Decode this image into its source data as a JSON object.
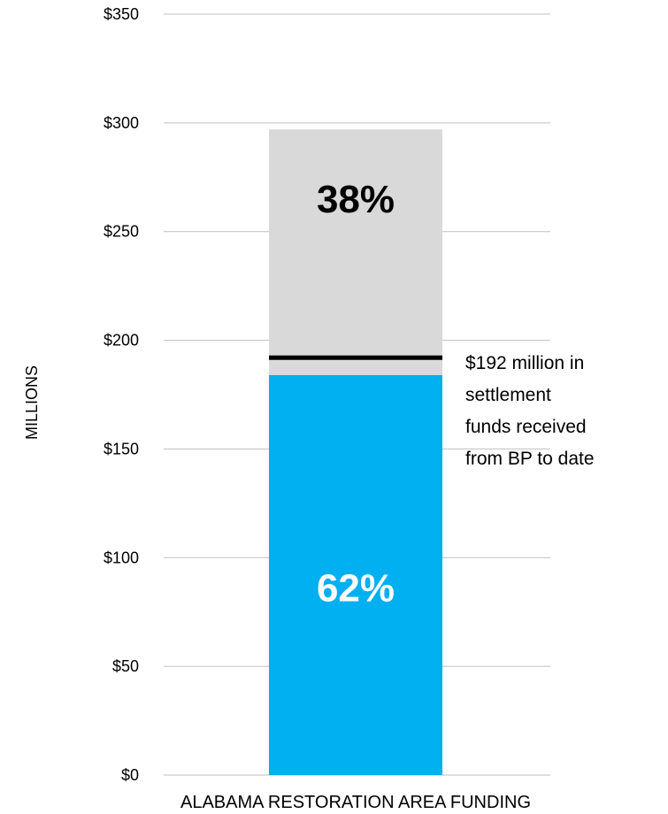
{
  "chart_data": {
    "type": "bar",
    "stacked": true,
    "categories": [
      "ALABAMA RESTORATION AREA FUNDING"
    ],
    "series": [
      {
        "label": "62%",
        "values": [
          184
        ],
        "color": "#00b0f0"
      },
      {
        "label": "38%",
        "values": [
          113
        ],
        "color": "#d9d9d9"
      }
    ],
    "ylabel": "MILLIONS",
    "ylim": [
      0,
      350
    ],
    "yticks": [
      0,
      50,
      100,
      150,
      200,
      250,
      300,
      350
    ],
    "ytick_labels": [
      "$0",
      "$50",
      "$100",
      "$150",
      "$200",
      "$250",
      "$300",
      "$350"
    ],
    "grid": true,
    "marker_line": {
      "value": 192
    },
    "annotation": {
      "lines": [
        "$192 million in",
        "settlement",
        "funds received",
        "from BP to date"
      ]
    },
    "colors": {
      "grid": "#bfbfbf",
      "marker": "#000000",
      "label_light": "#ffffff",
      "label_dark": "#000000"
    }
  }
}
